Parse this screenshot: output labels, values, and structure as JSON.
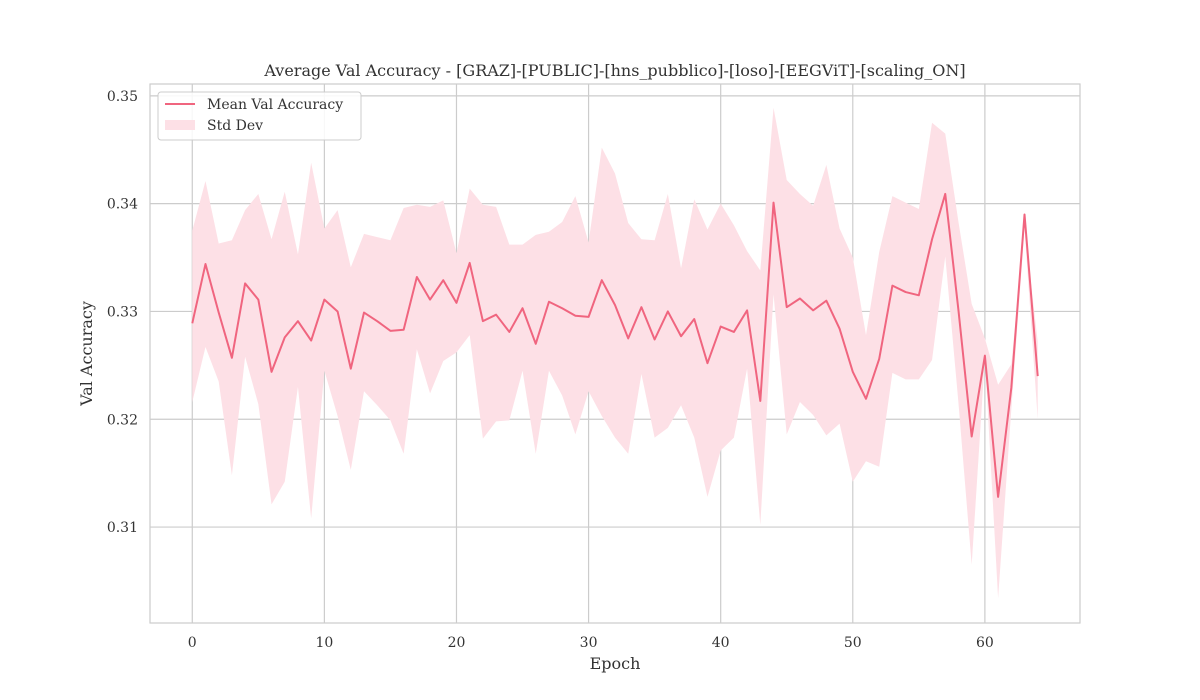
{
  "chart_data": {
    "type": "line",
    "title": "Average Val Accuracy - [GRAZ]-[PUBLIC]-[hns_pubblico]-[loso]-[EEGViT]-[scaling_ON]",
    "xlabel": "Epoch",
    "ylabel": "Val Accuracy",
    "xlim": [
      -3.2,
      67.2
    ],
    "ylim": [
      0.3011,
      0.3511
    ],
    "xticks": [
      0,
      10,
      20,
      30,
      40,
      50,
      60
    ],
    "xtick_labels": [
      "0",
      "10",
      "20",
      "30",
      "40",
      "50",
      "60"
    ],
    "yticks": [
      0.31,
      0.32,
      0.33,
      0.34,
      0.35
    ],
    "ytick_labels": [
      "0.31",
      "0.32",
      "0.33",
      "0.34",
      "0.35"
    ],
    "grid": true,
    "legend_position": "top-left",
    "x": [
      0,
      1,
      2,
      3,
      4,
      5,
      6,
      7,
      8,
      9,
      10,
      11,
      12,
      13,
      14,
      15,
      16,
      17,
      18,
      19,
      20,
      21,
      22,
      23,
      24,
      25,
      26,
      27,
      28,
      29,
      30,
      31,
      32,
      33,
      34,
      35,
      36,
      37,
      38,
      39,
      40,
      41,
      42,
      43,
      44,
      45,
      46,
      47,
      48,
      49,
      50,
      51,
      52,
      53,
      54,
      55,
      56,
      57,
      58,
      59,
      60,
      61,
      62,
      63,
      64
    ],
    "series": [
      {
        "name": "Mean Val Accuracy",
        "color": "#f0657f",
        "values": [
          0.3289,
          0.3344,
          0.3299,
          0.3257,
          0.3326,
          0.3311,
          0.3244,
          0.3276,
          0.3291,
          0.3273,
          0.3311,
          0.33,
          0.3247,
          0.3299,
          0.3291,
          0.3282,
          0.3283,
          0.3332,
          0.3311,
          0.3329,
          0.3308,
          0.3345,
          0.3291,
          0.3297,
          0.3281,
          0.3303,
          0.327,
          0.3309,
          0.3303,
          0.3296,
          0.3295,
          0.3329,
          0.3306,
          0.3275,
          0.3304,
          0.3274,
          0.33,
          0.3277,
          0.3293,
          0.3252,
          0.3286,
          0.3281,
          0.3301,
          0.3217,
          0.3401,
          0.3304,
          0.3312,
          0.3301,
          0.331,
          0.3284,
          0.3244,
          0.3219,
          0.3256,
          0.3324,
          0.3318,
          0.3315,
          0.3367,
          0.3409,
          0.3301,
          0.3184,
          0.3259,
          0.3128,
          0.3229,
          0.339,
          0.324
        ]
      },
      {
        "name": "Std Dev",
        "color": "#fde0e6",
        "upper": [
          0.3375,
          0.3421,
          0.3363,
          0.3366,
          0.3394,
          0.3409,
          0.3367,
          0.3411,
          0.3353,
          0.3438,
          0.3377,
          0.3394,
          0.3341,
          0.3372,
          0.3369,
          0.3366,
          0.3396,
          0.3399,
          0.3397,
          0.3403,
          0.3354,
          0.3414,
          0.3399,
          0.3397,
          0.3362,
          0.3362,
          0.3371,
          0.3374,
          0.3383,
          0.3407,
          0.3364,
          0.3452,
          0.3428,
          0.3382,
          0.3367,
          0.3366,
          0.3409,
          0.334,
          0.3404,
          0.3376,
          0.34,
          0.338,
          0.3356,
          0.3338,
          0.3489,
          0.3422,
          0.3409,
          0.3398,
          0.3436,
          0.3377,
          0.335,
          0.3278,
          0.3355,
          0.3407,
          0.3401,
          0.3395,
          0.3475,
          0.3465,
          0.3383,
          0.3307,
          0.3275,
          0.3232,
          0.3251,
          0.3378,
          0.3272
        ],
        "lower": [
          0.3216,
          0.3267,
          0.3235,
          0.3148,
          0.3258,
          0.3214,
          0.3121,
          0.3142,
          0.323,
          0.3108,
          0.3245,
          0.3203,
          0.3153,
          0.3226,
          0.3213,
          0.3199,
          0.3168,
          0.3265,
          0.3224,
          0.3254,
          0.3262,
          0.3278,
          0.3182,
          0.3198,
          0.3199,
          0.3245,
          0.3168,
          0.3245,
          0.3222,
          0.3186,
          0.3226,
          0.3203,
          0.3183,
          0.3168,
          0.3242,
          0.3183,
          0.3192,
          0.3213,
          0.3183,
          0.3128,
          0.3171,
          0.3183,
          0.3247,
          0.3102,
          0.3316,
          0.3186,
          0.3216,
          0.3204,
          0.3185,
          0.3196,
          0.3142,
          0.3161,
          0.3156,
          0.3243,
          0.3237,
          0.3237,
          0.3255,
          0.3351,
          0.3215,
          0.3065,
          0.3257,
          0.3034,
          0.3209,
          0.3377,
          0.32
        ]
      }
    ]
  }
}
